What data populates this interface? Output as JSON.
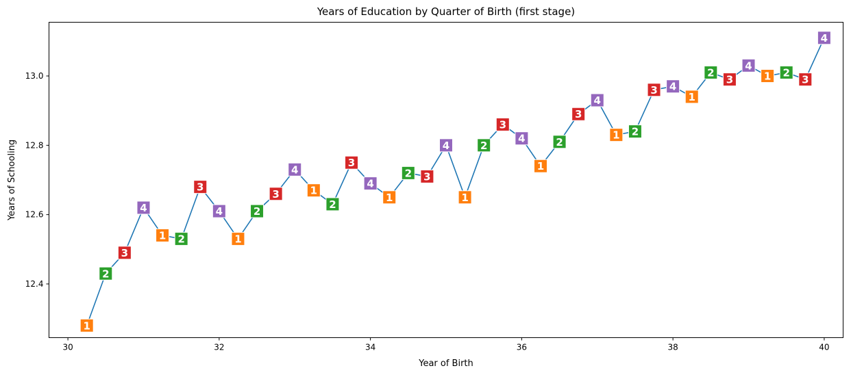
{
  "chart_data": {
    "type": "line",
    "title": "Years of Education by Quarter of Birth (first stage)",
    "xlabel": "Year of Birth",
    "ylabel": "Years of Schooling",
    "xlim": [
      29.75,
      40.25
    ],
    "ylim": [
      12.245,
      13.155
    ],
    "xticks": [
      "30",
      "32",
      "34",
      "36",
      "38",
      "40"
    ],
    "yticks": [
      "12.4",
      "12.6",
      "12.8",
      "13.0"
    ],
    "line_color": "#1f77b4",
    "quarter_colors": {
      "1": "#ff7f0e",
      "2": "#2ca02c",
      "3": "#d62728",
      "4": "#9467bd"
    },
    "grid": false,
    "legend": "none",
    "points": [
      {
        "x": 30.25,
        "y": 12.28,
        "q": "1"
      },
      {
        "x": 30.5,
        "y": 12.43,
        "q": "2"
      },
      {
        "x": 30.75,
        "y": 12.49,
        "q": "3"
      },
      {
        "x": 31.0,
        "y": 12.62,
        "q": "4"
      },
      {
        "x": 31.25,
        "y": 12.54,
        "q": "1"
      },
      {
        "x": 31.5,
        "y": 12.53,
        "q": "2"
      },
      {
        "x": 31.75,
        "y": 12.68,
        "q": "3"
      },
      {
        "x": 32.0,
        "y": 12.61,
        "q": "4"
      },
      {
        "x": 32.25,
        "y": 12.53,
        "q": "1"
      },
      {
        "x": 32.5,
        "y": 12.61,
        "q": "2"
      },
      {
        "x": 32.75,
        "y": 12.66,
        "q": "3"
      },
      {
        "x": 33.0,
        "y": 12.73,
        "q": "4"
      },
      {
        "x": 33.25,
        "y": 12.67,
        "q": "1"
      },
      {
        "x": 33.5,
        "y": 12.63,
        "q": "2"
      },
      {
        "x": 33.75,
        "y": 12.75,
        "q": "3"
      },
      {
        "x": 34.0,
        "y": 12.69,
        "q": "4"
      },
      {
        "x": 34.25,
        "y": 12.65,
        "q": "1"
      },
      {
        "x": 34.5,
        "y": 12.72,
        "q": "2"
      },
      {
        "x": 34.75,
        "y": 12.71,
        "q": "3"
      },
      {
        "x": 35.0,
        "y": 12.8,
        "q": "4"
      },
      {
        "x": 35.25,
        "y": 12.65,
        "q": "1"
      },
      {
        "x": 35.5,
        "y": 12.8,
        "q": "2"
      },
      {
        "x": 35.75,
        "y": 12.86,
        "q": "3"
      },
      {
        "x": 36.0,
        "y": 12.82,
        "q": "4"
      },
      {
        "x": 36.25,
        "y": 12.74,
        "q": "1"
      },
      {
        "x": 36.5,
        "y": 12.81,
        "q": "2"
      },
      {
        "x": 36.75,
        "y": 12.89,
        "q": "3"
      },
      {
        "x": 37.0,
        "y": 12.93,
        "q": "4"
      },
      {
        "x": 37.25,
        "y": 12.83,
        "q": "1"
      },
      {
        "x": 37.5,
        "y": 12.84,
        "q": "2"
      },
      {
        "x": 37.75,
        "y": 12.96,
        "q": "3"
      },
      {
        "x": 38.0,
        "y": 12.97,
        "q": "4"
      },
      {
        "x": 38.25,
        "y": 12.94,
        "q": "1"
      },
      {
        "x": 38.5,
        "y": 13.01,
        "q": "2"
      },
      {
        "x": 38.75,
        "y": 12.99,
        "q": "3"
      },
      {
        "x": 39.0,
        "y": 13.03,
        "q": "4"
      },
      {
        "x": 39.25,
        "y": 13.0,
        "q": "1"
      },
      {
        "x": 39.5,
        "y": 13.01,
        "q": "2"
      },
      {
        "x": 39.75,
        "y": 12.99,
        "q": "3"
      },
      {
        "x": 40.0,
        "y": 13.11,
        "q": "4"
      }
    ]
  }
}
